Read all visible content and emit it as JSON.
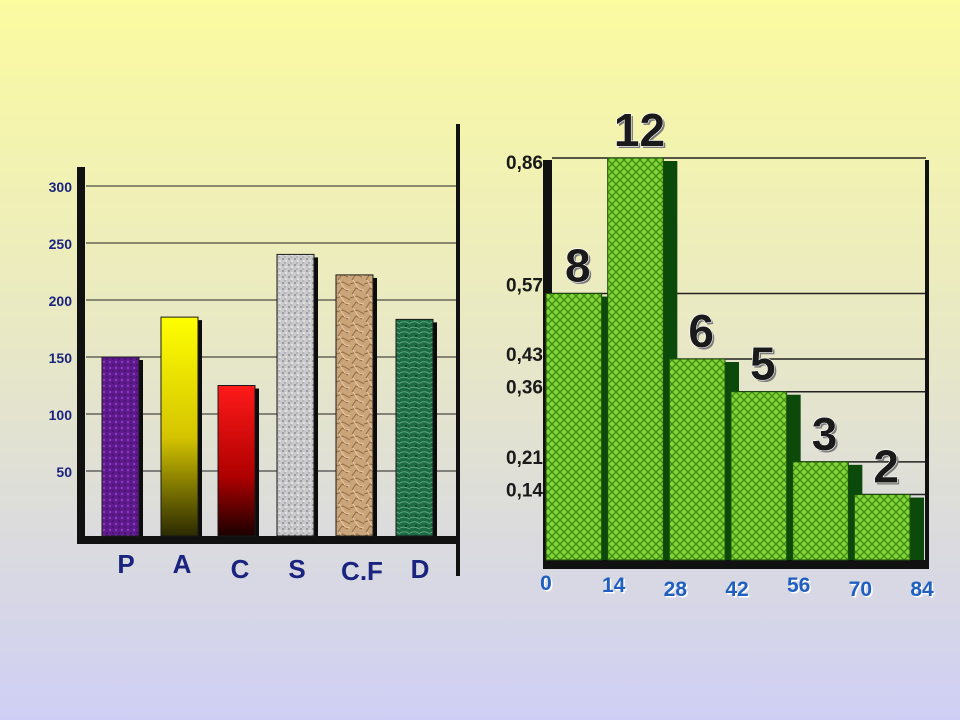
{
  "chart_data": [
    {
      "type": "bar",
      "categories": [
        "P",
        "A",
        "C",
        "S",
        "C.F",
        "D"
      ],
      "values": [
        150,
        185,
        125,
        240,
        222,
        183
      ],
      "y_ticks": [
        "50",
        "100",
        "150",
        "200",
        "250",
        "300"
      ],
      "ylim": [
        0,
        300
      ],
      "grid": true,
      "colors": {
        "P": "#6a1b9a",
        "A": "#ffee00",
        "C": "#ff1a1a",
        "S": "#c8c8c8",
        "C.F": "#caa57a",
        "D": "#1f6b45"
      }
    },
    {
      "type": "bar",
      "x_ticks": [
        "0",
        "14",
        "28",
        "42",
        "56",
        "70",
        "84"
      ],
      "bin_edges": [
        0,
        14,
        28,
        42,
        56,
        70,
        84
      ],
      "values": [
        0.57,
        0.86,
        0.43,
        0.36,
        0.21,
        0.14
      ],
      "y_ticks": [
        "0,86",
        "0,57",
        "0,43",
        "0,36",
        "0,21",
        "0,14"
      ],
      "y_tick_values": [
        0.86,
        0.57,
        0.43,
        0.36,
        0.21,
        0.14
      ],
      "bar_labels": [
        "8",
        "12",
        "6",
        "5",
        "3",
        "2"
      ],
      "grid": true,
      "colors": {
        "bar": "#7ccf2f",
        "shadow": "#0b4a0b"
      }
    }
  ]
}
